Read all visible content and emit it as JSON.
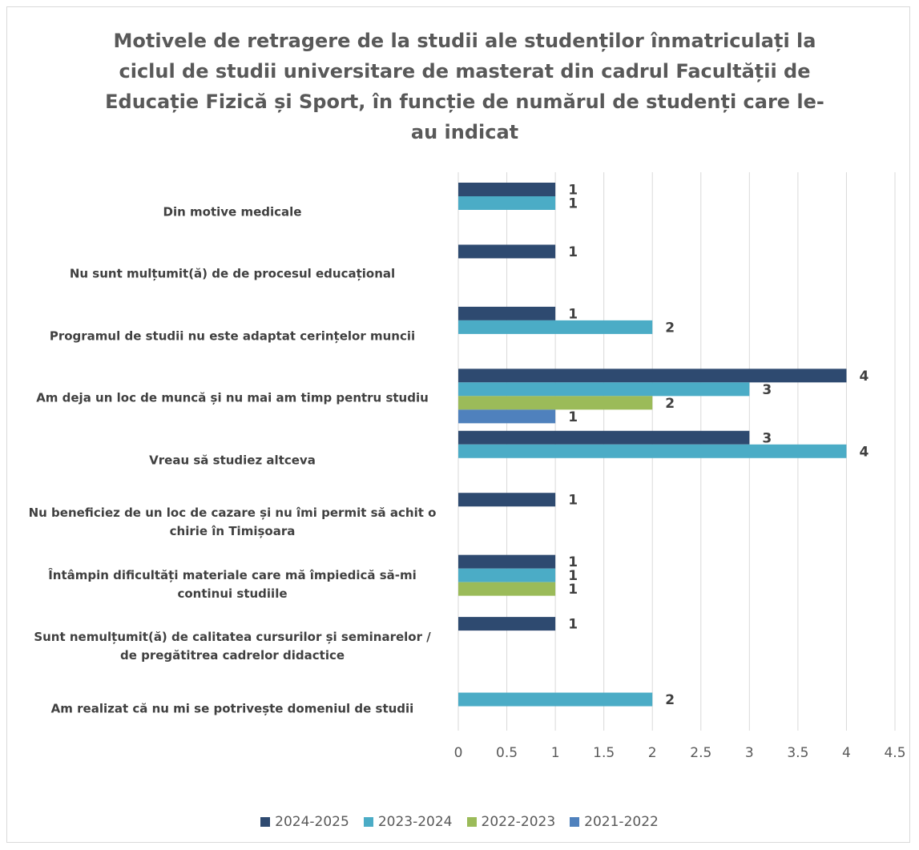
{
  "chart_data": {
    "type": "bar",
    "orientation": "horizontal",
    "title": "Motivele de retragere de la studii ale studenților înmatriculați la ciclul de studii universitare de masterat din cadrul Facultății de Educație Fizică și Sport, în funcție de numărul de studenți care le-au indicat",
    "categories": [
      [
        "Din motive medicale"
      ],
      [
        "Nu sunt mulțumit(ă) de de procesul educațional"
      ],
      [
        "Programul de studii nu este adaptat cerințelor muncii"
      ],
      [
        "Am deja un loc de muncă și nu mai am timp pentru studiu"
      ],
      [
        "Vreau să studiez altceva"
      ],
      [
        "Nu beneficiez de un loc de cazare și nu îmi permit să achit o",
        "chirie în Timișoara"
      ],
      [
        "Întâmpin dificultăți materiale care mă împiedică să-mi",
        "continui studiile"
      ],
      [
        "Sunt nemulțumit(ă) de calitatea cursurilor și seminarelor /",
        "de pregătitrea cadrelor didactice"
      ],
      [
        "Am realizat că nu mi se potrivește domeniul de studii"
      ]
    ],
    "series": [
      {
        "name": "2024-2025",
        "color": "#2E4A70",
        "values": [
          1,
          1,
          1,
          4,
          3,
          1,
          1,
          1,
          null
        ]
      },
      {
        "name": "2023-2024",
        "color": "#4BACC6",
        "values": [
          1,
          null,
          2,
          3,
          4,
          null,
          1,
          null,
          2
        ]
      },
      {
        "name": "2022-2023",
        "color": "#9BBB59",
        "values": [
          null,
          null,
          null,
          2,
          null,
          null,
          1,
          null,
          null
        ]
      },
      {
        "name": "2021-2022",
        "color": "#4F81BD",
        "values": [
          null,
          null,
          null,
          1,
          null,
          null,
          null,
          null,
          null
        ]
      }
    ],
    "xlim": [
      0,
      4.5
    ],
    "xticks": [
      "0",
      "0.5",
      "1",
      "1.5",
      "2",
      "2.5",
      "3",
      "3.5",
      "4",
      "4.5"
    ],
    "grid": true,
    "legend": "bottom",
    "data_labels": true
  }
}
